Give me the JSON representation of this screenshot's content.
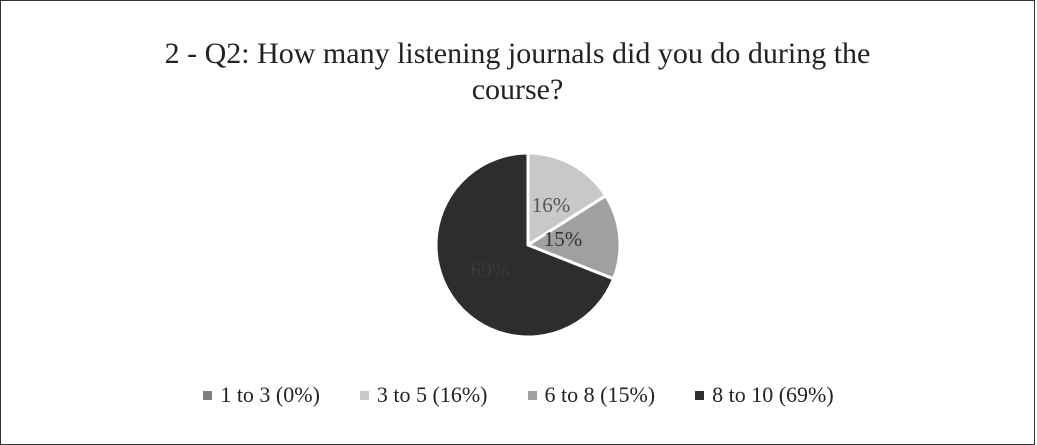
{
  "chart_data": {
    "type": "pie",
    "title_lines": [
      "2 - Q2: How many listening journals did you do during the",
      "course?"
    ],
    "slices": [
      {
        "name": "1 to 3 (0%)",
        "value": 0,
        "label": "",
        "color": "#7f7f7f",
        "label_color": "#555555"
      },
      {
        "name": "3 to 5 (16%)",
        "value": 16,
        "label": "16%",
        "color": "#c8c8c8",
        "label_color": "#555555"
      },
      {
        "name": "6 to 8 (15%)",
        "value": 15,
        "label": "15%",
        "color": "#a0a0a0",
        "label_color": "#333333"
      },
      {
        "name": "8 to 10 (69%)",
        "value": 69,
        "label": "69%",
        "color": "#2d2d2d",
        "label_color": "#3a3a3a"
      }
    ],
    "legend_position": "bottom"
  }
}
